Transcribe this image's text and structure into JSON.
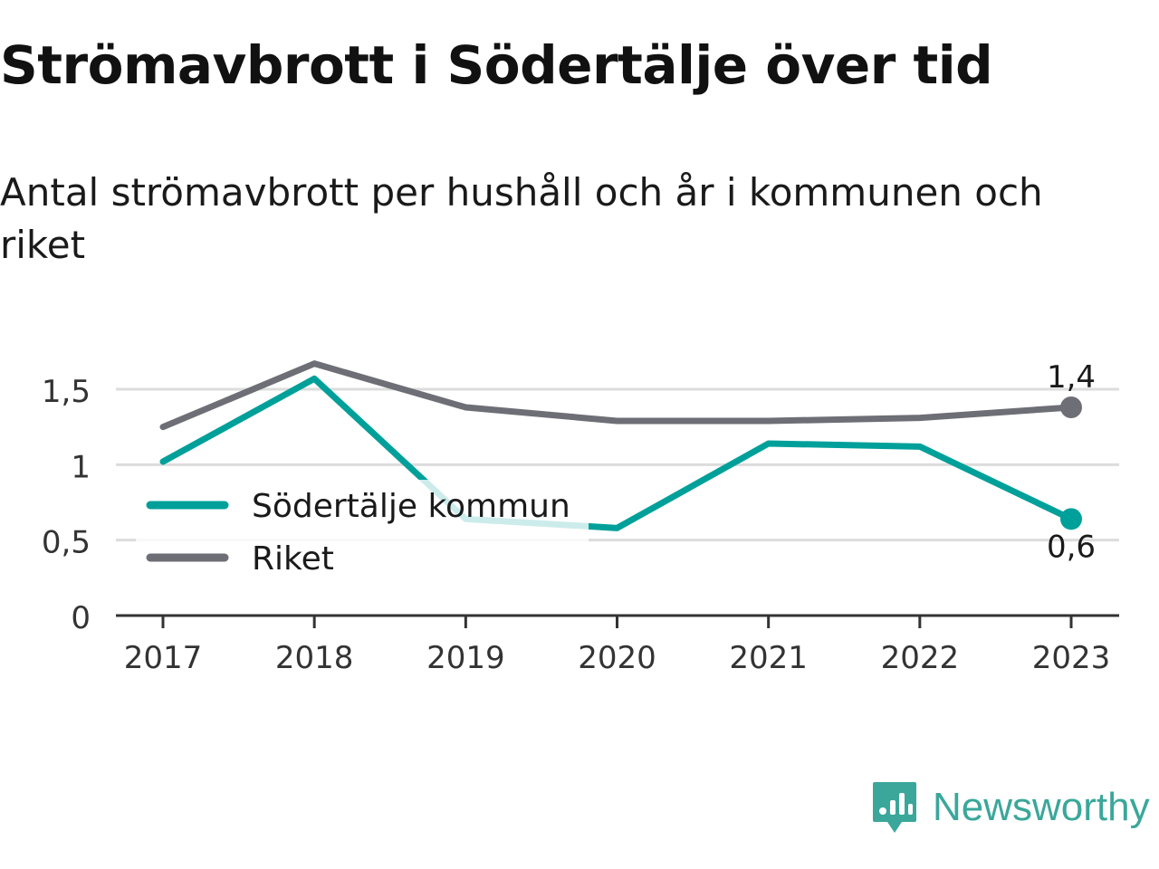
{
  "title": "Strömavbrott i Södertälje över tid",
  "subtitle": "Antal strömavbrott per hushåll och år i kommunen och riket",
  "brand": {
    "name": "Newsworthy",
    "color": "#3aa79a"
  },
  "chart_data": {
    "type": "line",
    "x": [
      "2017",
      "2018",
      "2019",
      "2020",
      "2021",
      "2022",
      "2023"
    ],
    "series": [
      {
        "name": "Södertälje kommun",
        "color": "#00a09a",
        "values": [
          1.02,
          1.57,
          0.64,
          0.58,
          1.14,
          1.12,
          0.64
        ],
        "end_label": "0,6"
      },
      {
        "name": "Riket",
        "color": "#6e6e76",
        "values": [
          1.25,
          1.67,
          1.38,
          1.29,
          1.29,
          1.31,
          1.38
        ],
        "end_label": "1,4"
      }
    ],
    "yticks": [
      {
        "value": 0,
        "label": "0"
      },
      {
        "value": 0.5,
        "label": "0,5"
      },
      {
        "value": 1,
        "label": "1"
      },
      {
        "value": 1.5,
        "label": "1,5"
      }
    ],
    "ylim": [
      0,
      1.75
    ],
    "grid": true,
    "legend": "inside-left"
  }
}
